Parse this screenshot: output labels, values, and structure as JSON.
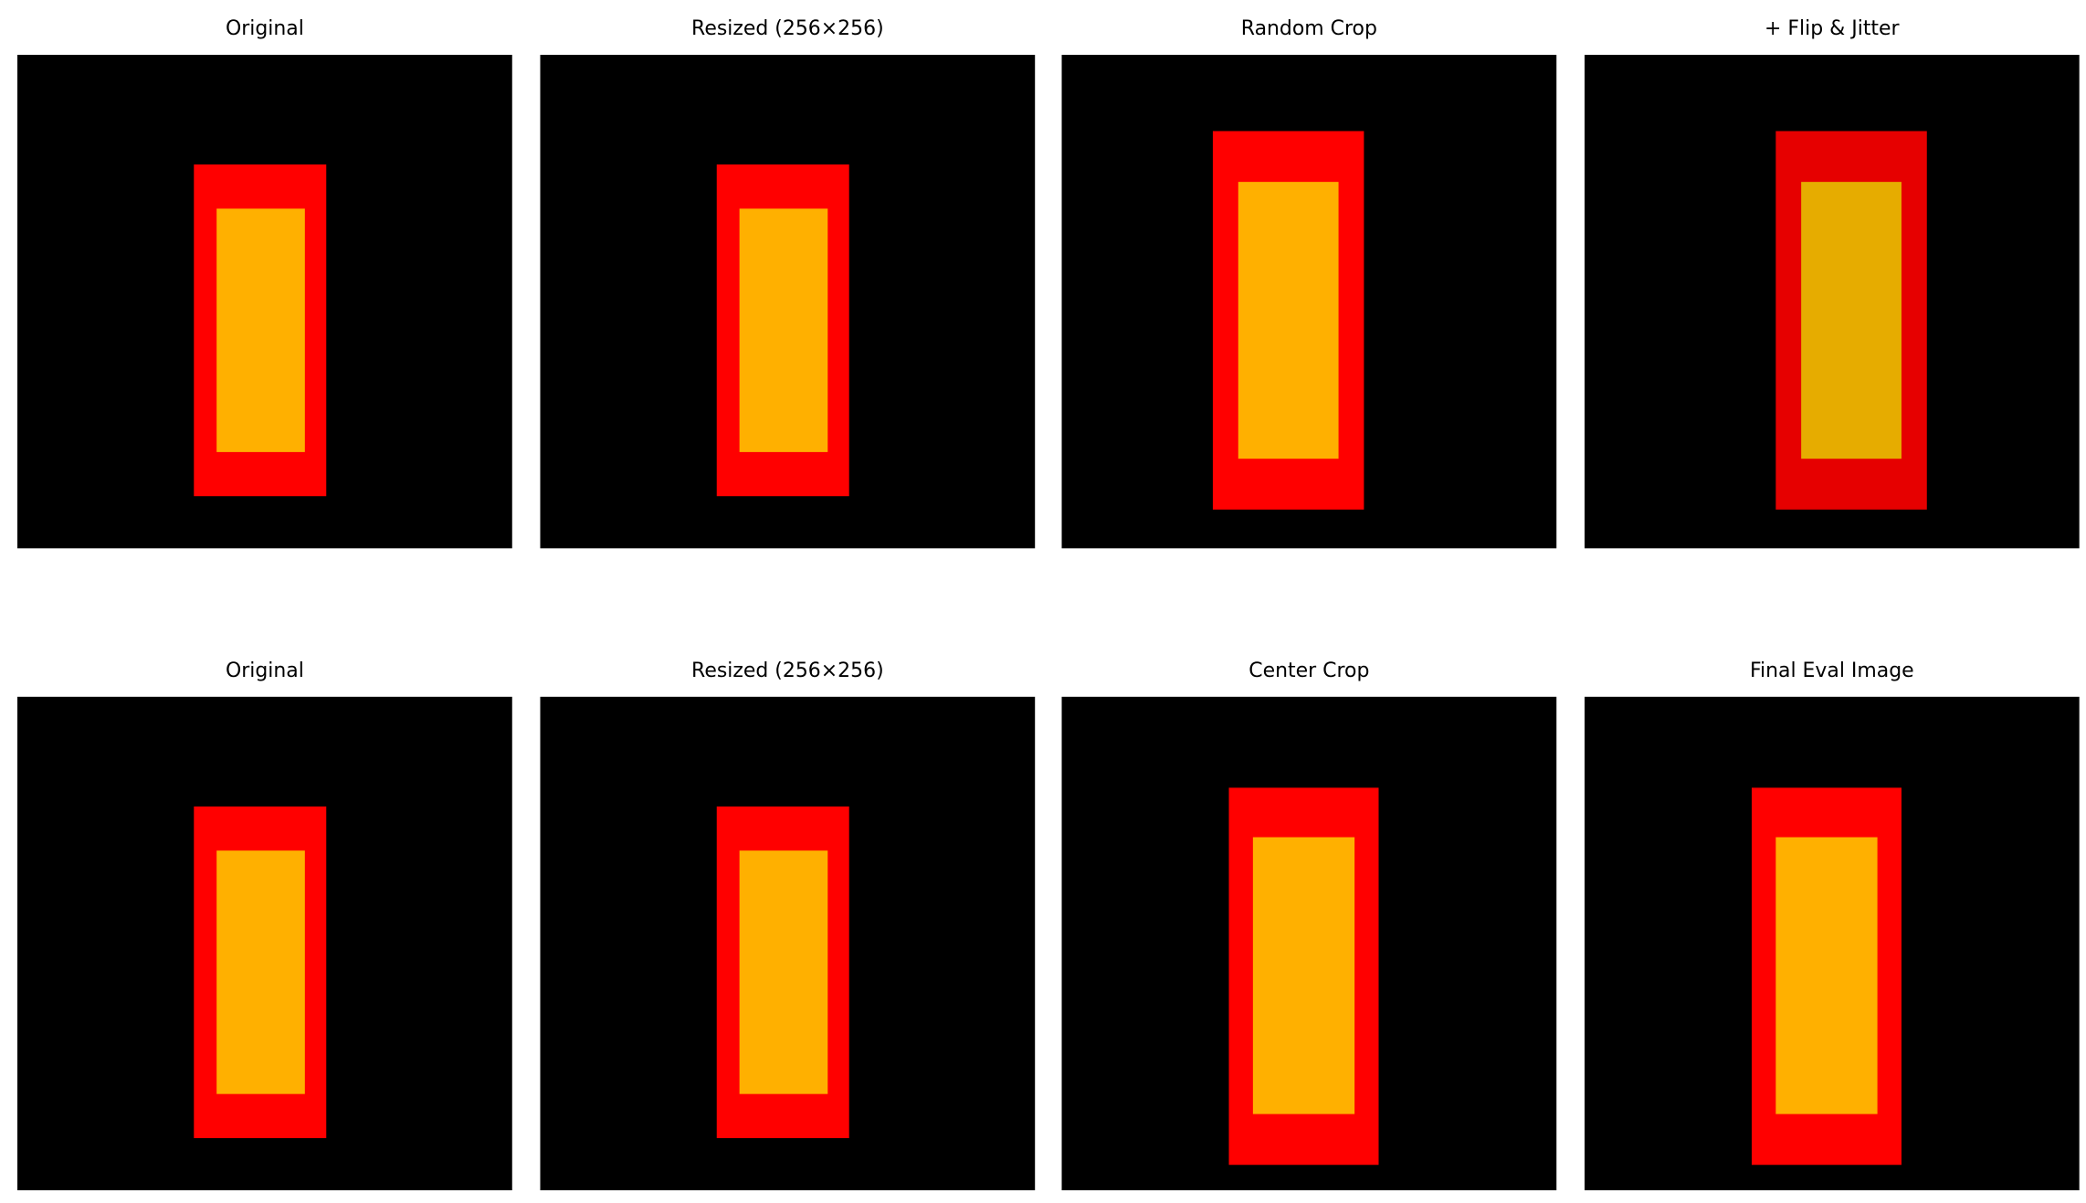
{
  "rows": [
    [
      "Original",
      "Resized (256×256)",
      "Random Crop",
      "+ Flip & Jitter"
    ],
    [
      "Original",
      "Resized (256×256)",
      "Center Crop",
      "Final Eval Image"
    ]
  ]
}
